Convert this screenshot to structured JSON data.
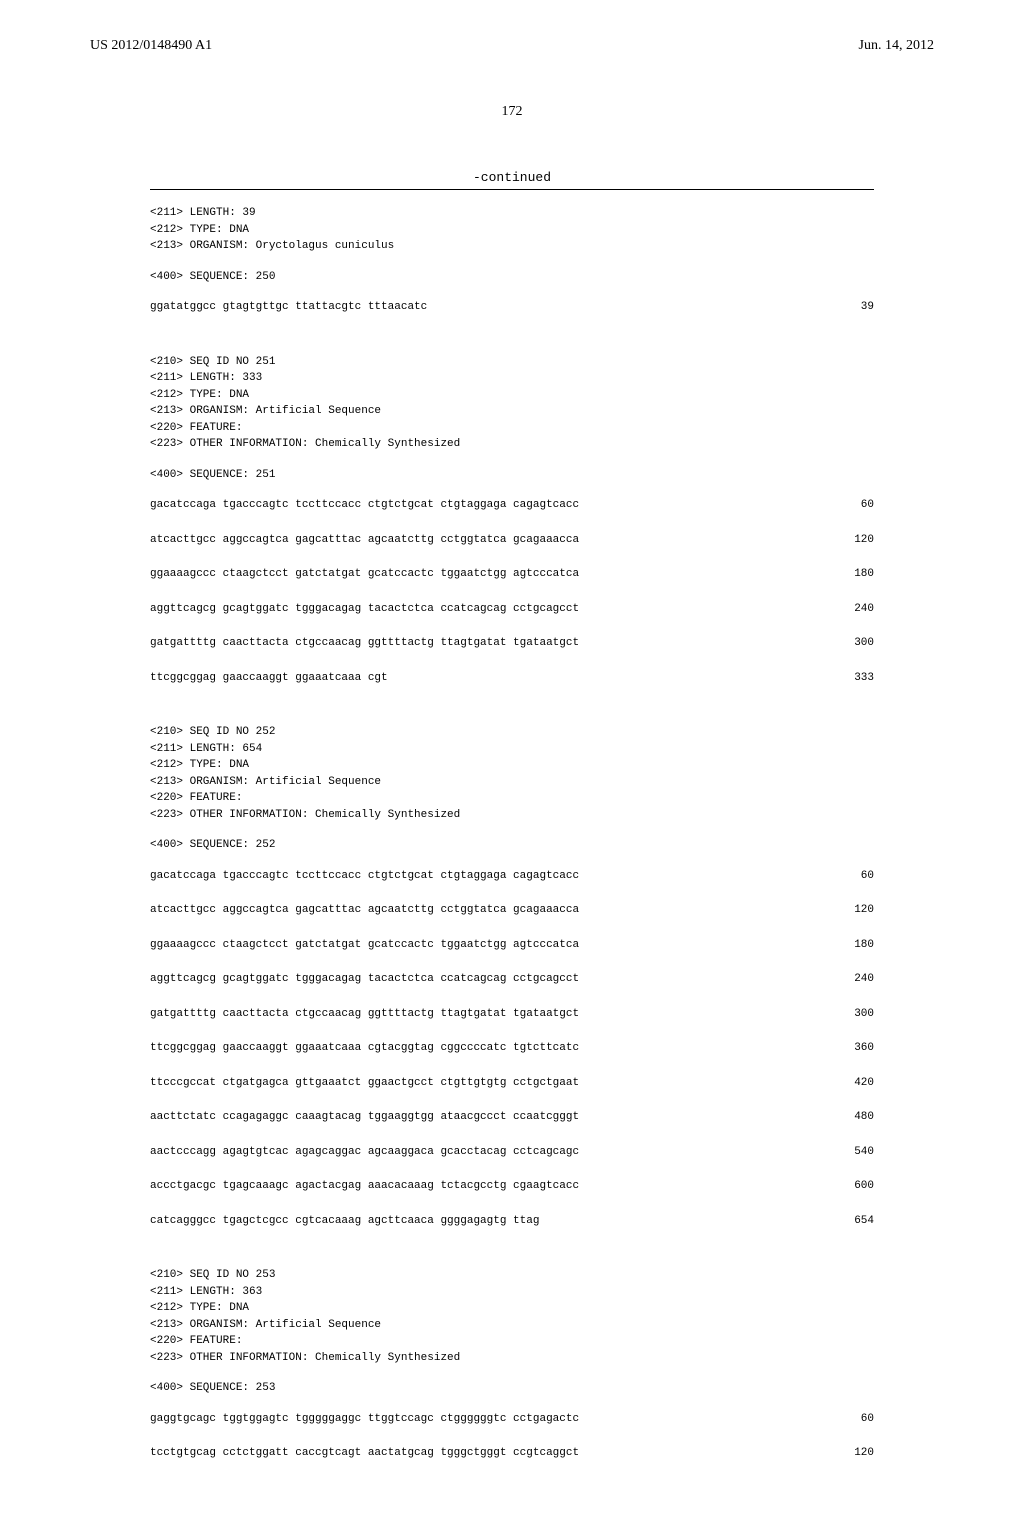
{
  "header": {
    "publication_number": "US 2012/0148490 A1",
    "date": "Jun. 14, 2012"
  },
  "page_number": "172",
  "continued_label": "-continued",
  "entries": [
    {
      "headers": [
        "<211> LENGTH: 39",
        "<212> TYPE: DNA",
        "<213> ORGANISM: Oryctolagus cuniculus"
      ],
      "sequence_label": "<400> SEQUENCE: 250",
      "lines": [
        {
          "text": "ggatatggcc gtagtgttgc ttattacgtc tttaacatc",
          "pos": "39"
        }
      ]
    },
    {
      "headers": [
        "<210> SEQ ID NO 251",
        "<211> LENGTH: 333",
        "<212> TYPE: DNA",
        "<213> ORGANISM: Artificial Sequence",
        "<220> FEATURE:",
        "<223> OTHER INFORMATION: Chemically Synthesized"
      ],
      "sequence_label": "<400> SEQUENCE: 251",
      "lines": [
        {
          "text": "gacatccaga tgacccagtc tccttccacc ctgtctgcat ctgtaggaga cagagtcacc",
          "pos": "60"
        },
        {
          "text": "atcacttgcc aggccagtca gagcatttac agcaatcttg cctggtatca gcagaaacca",
          "pos": "120"
        },
        {
          "text": "ggaaaagccc ctaagctcct gatctatgat gcatccactc tggaatctgg agtcccatca",
          "pos": "180"
        },
        {
          "text": "aggttcagcg gcagtggatc tgggacagag tacactctca ccatcagcag cctgcagcct",
          "pos": "240"
        },
        {
          "text": "gatgattttg caacttacta ctgccaacag ggttttactg ttagtgatat tgataatgct",
          "pos": "300"
        },
        {
          "text": "ttcggcggag gaaccaaggt ggaaatcaaa cgt",
          "pos": "333"
        }
      ]
    },
    {
      "headers": [
        "<210> SEQ ID NO 252",
        "<211> LENGTH: 654",
        "<212> TYPE: DNA",
        "<213> ORGANISM: Artificial Sequence",
        "<220> FEATURE:",
        "<223> OTHER INFORMATION: Chemically Synthesized"
      ],
      "sequence_label": "<400> SEQUENCE: 252",
      "lines": [
        {
          "text": "gacatccaga tgacccagtc tccttccacc ctgtctgcat ctgtaggaga cagagtcacc",
          "pos": "60"
        },
        {
          "text": "atcacttgcc aggccagtca gagcatttac agcaatcttg cctggtatca gcagaaacca",
          "pos": "120"
        },
        {
          "text": "ggaaaagccc ctaagctcct gatctatgat gcatccactc tggaatctgg agtcccatca",
          "pos": "180"
        },
        {
          "text": "aggttcagcg gcagtggatc tgggacagag tacactctca ccatcagcag cctgcagcct",
          "pos": "240"
        },
        {
          "text": "gatgattttg caacttacta ctgccaacag ggttttactg ttagtgatat tgataatgct",
          "pos": "300"
        },
        {
          "text": "ttcggcggag gaaccaaggt ggaaatcaaa cgtacggtag cggccccatc tgtcttcatc",
          "pos": "360"
        },
        {
          "text": "ttcccgccat ctgatgagca gttgaaatct ggaactgcct ctgttgtgtg cctgctgaat",
          "pos": "420"
        },
        {
          "text": "aacttctatc ccagagaggc caaagtacag tggaaggtgg ataacgccct ccaatcgggt",
          "pos": "480"
        },
        {
          "text": "aactcccagg agagtgtcac agagcaggac agcaaggaca gcacctacag cctcagcagc",
          "pos": "540"
        },
        {
          "text": "accctgacgc tgagcaaagc agactacgag aaacacaaag tctacgcctg cgaagtcacc",
          "pos": "600"
        },
        {
          "text": "catcagggcc tgagctcgcc cgtcacaaag agcttcaaca ggggagagtg ttag",
          "pos": "654"
        }
      ]
    },
    {
      "headers": [
        "<210> SEQ ID NO 253",
        "<211> LENGTH: 363",
        "<212> TYPE: DNA",
        "<213> ORGANISM: Artificial Sequence",
        "<220> FEATURE:",
        "<223> OTHER INFORMATION: Chemically Synthesized"
      ],
      "sequence_label": "<400> SEQUENCE: 253",
      "lines": [
        {
          "text": "gaggtgcagc tggtggagtc tgggggaggc ttggtccagc ctggggggtc cctgagactc",
          "pos": "60"
        },
        {
          "text": "tcctgtgcag cctctggatt caccgtcagt aactatgcag tgggctgggt ccgtcaggct",
          "pos": "120"
        }
      ]
    }
  ]
}
